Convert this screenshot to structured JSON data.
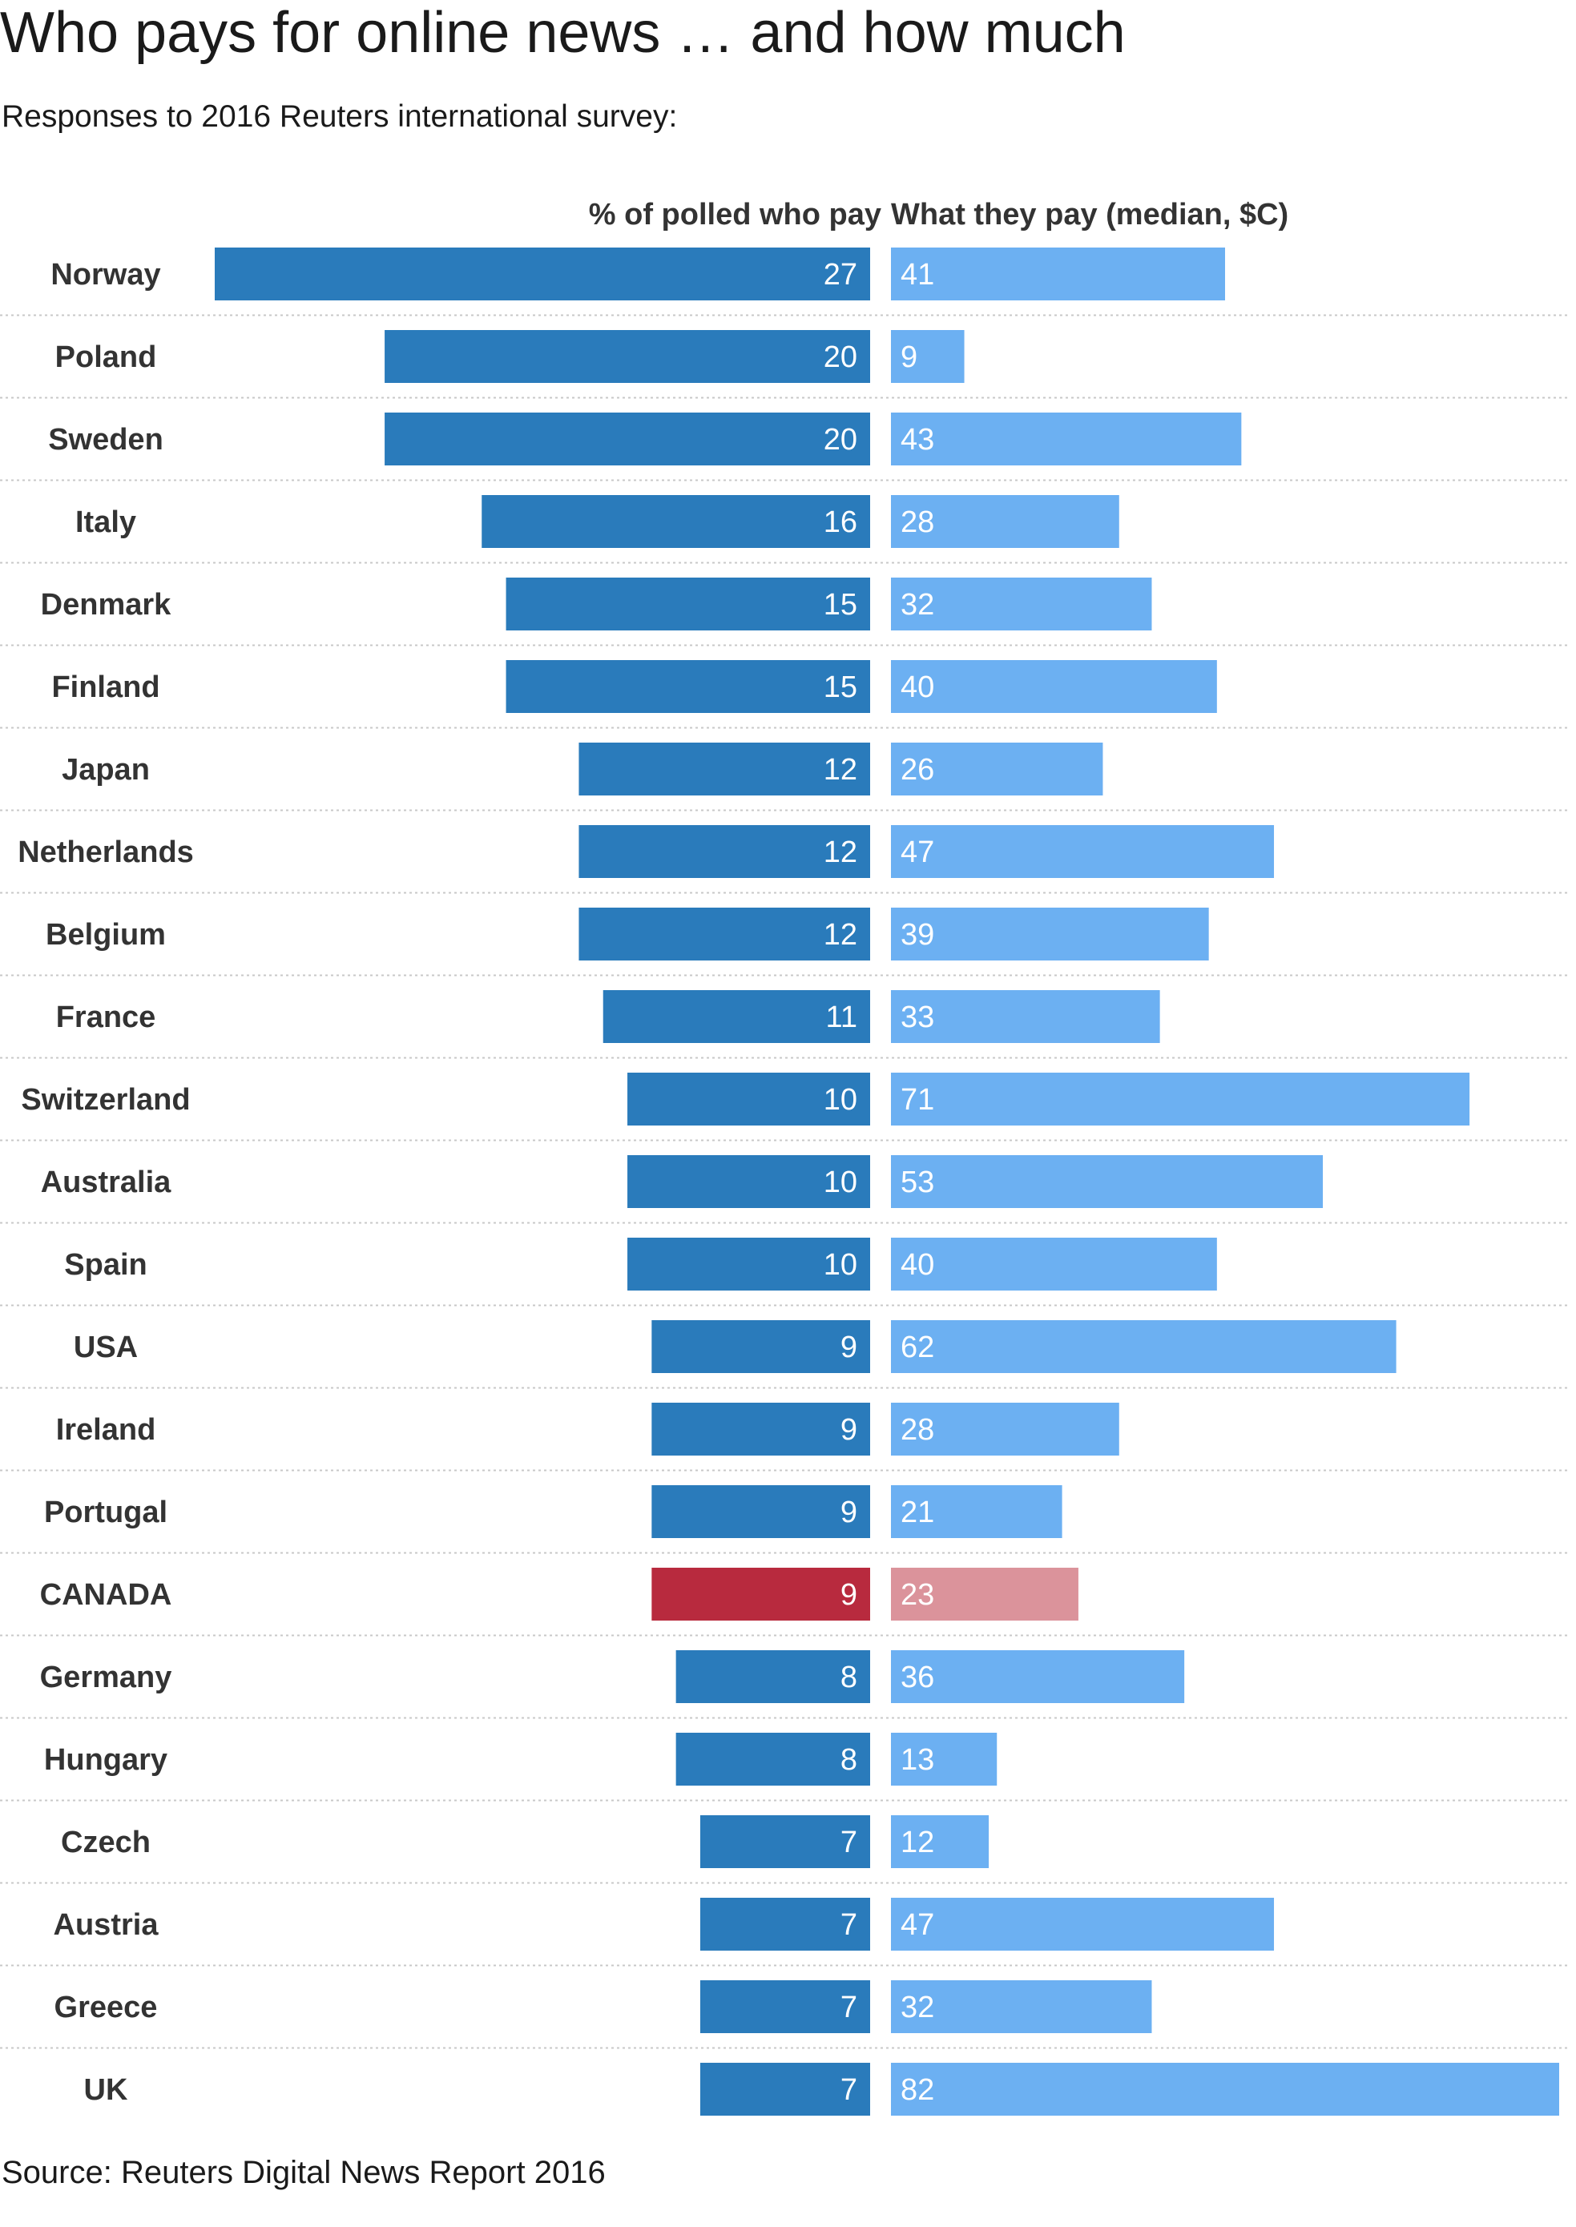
{
  "title": "Who pays for online news … and how much",
  "subtitle": "Responses to 2016 Reuters international survey:",
  "source": "Source: Reuters Digital News Report 2016",
  "colors": {
    "pay_pct_bar": "#2a7bbb",
    "pay_amount_bar": "#6cb0f2",
    "highlight_pct_bar": "#b82a3e",
    "highlight_amount_bar": "#db939b",
    "separator": "#c8c8c8"
  },
  "chart_data": {
    "type": "bar",
    "orientation": "horizontal",
    "title": "Who pays for online news … and how much",
    "subtitle": "Responses to 2016 Reuters international survey:",
    "highlight": "CANADA",
    "categories": [
      "Norway",
      "Poland",
      "Sweden",
      "Italy",
      "Denmark",
      "Finland",
      "Japan",
      "Netherlands",
      "Belgium",
      "France",
      "Switzerland",
      "Australia",
      "Spain",
      "USA",
      "Ireland",
      "Portugal",
      "CANADA",
      "Germany",
      "Hungary",
      "Czech",
      "Austria",
      "Greece",
      "UK"
    ],
    "series": [
      {
        "name": "% of polled who pay",
        "direction": "left",
        "values": [
          27,
          20,
          20,
          16,
          15,
          15,
          12,
          12,
          12,
          11,
          10,
          10,
          10,
          9,
          9,
          9,
          9,
          8,
          8,
          7,
          7,
          7,
          7
        ],
        "range": [
          0,
          27
        ]
      },
      {
        "name": "What they pay (median, $C)",
        "direction": "right",
        "values": [
          41,
          9,
          43,
          28,
          32,
          40,
          26,
          47,
          39,
          33,
          71,
          53,
          40,
          62,
          28,
          21,
          23,
          36,
          13,
          12,
          47,
          32,
          82
        ],
        "range": [
          0,
          82
        ]
      }
    ],
    "grid": false,
    "row_separators": "dotted"
  }
}
